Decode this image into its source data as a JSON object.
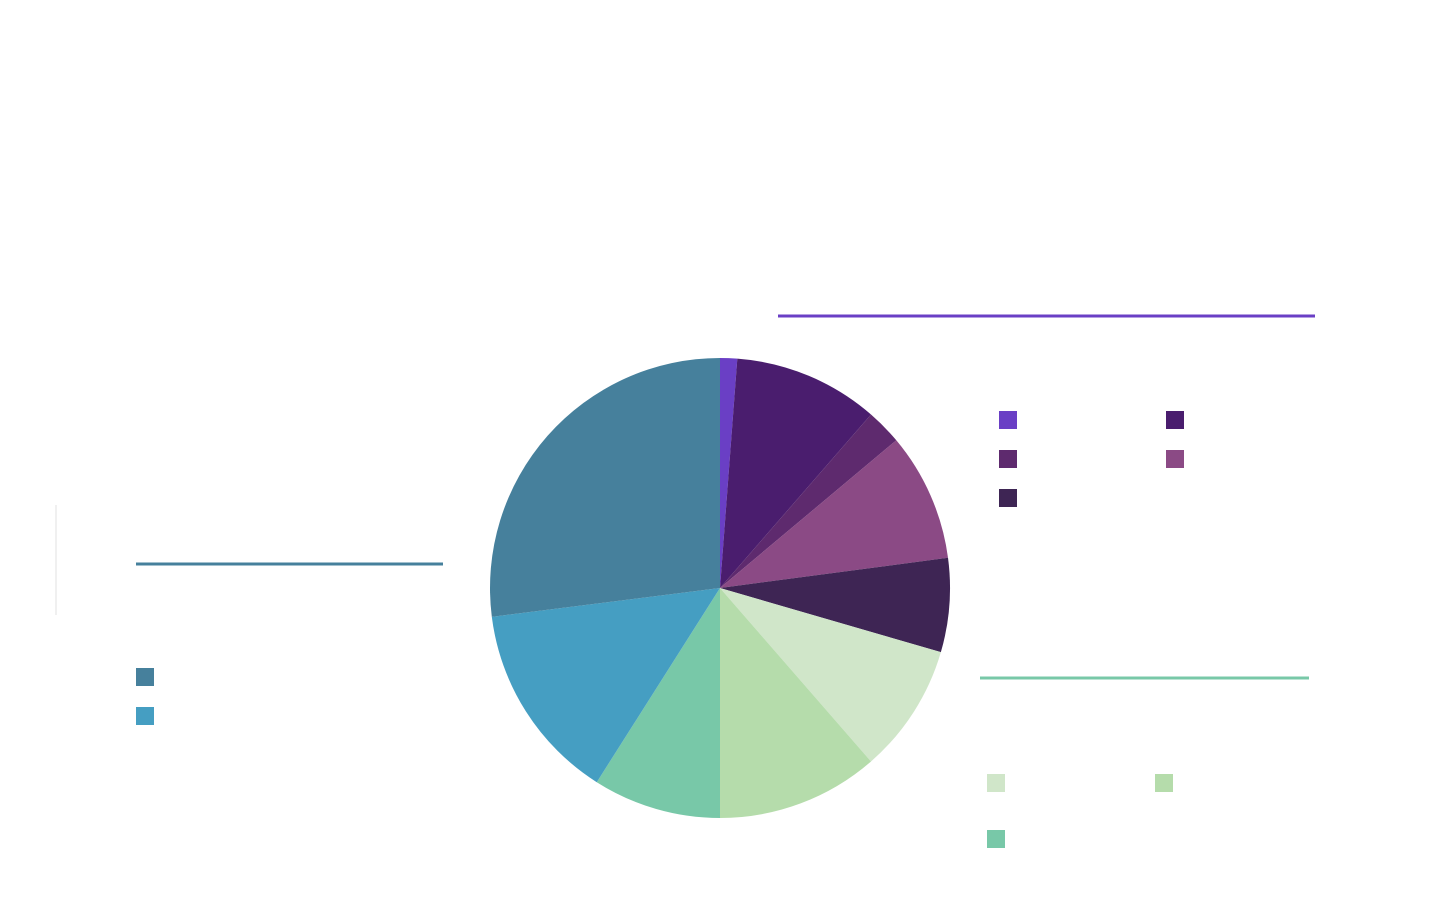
{
  "chart_data": {
    "type": "pie",
    "values": [
      1.2,
      10.2,
      2.5,
      9,
      6.6,
      9.1,
      11.4,
      9,
      14,
      27
    ],
    "colors": [
      "#6a3fc5",
      "#4a1d6e",
      "#5e2a6e",
      "#8b4a85",
      "#3e2554",
      "#d0e6c9",
      "#b5dcab",
      "#78c8a8",
      "#459ec2",
      "#46809c"
    ]
  }
}
